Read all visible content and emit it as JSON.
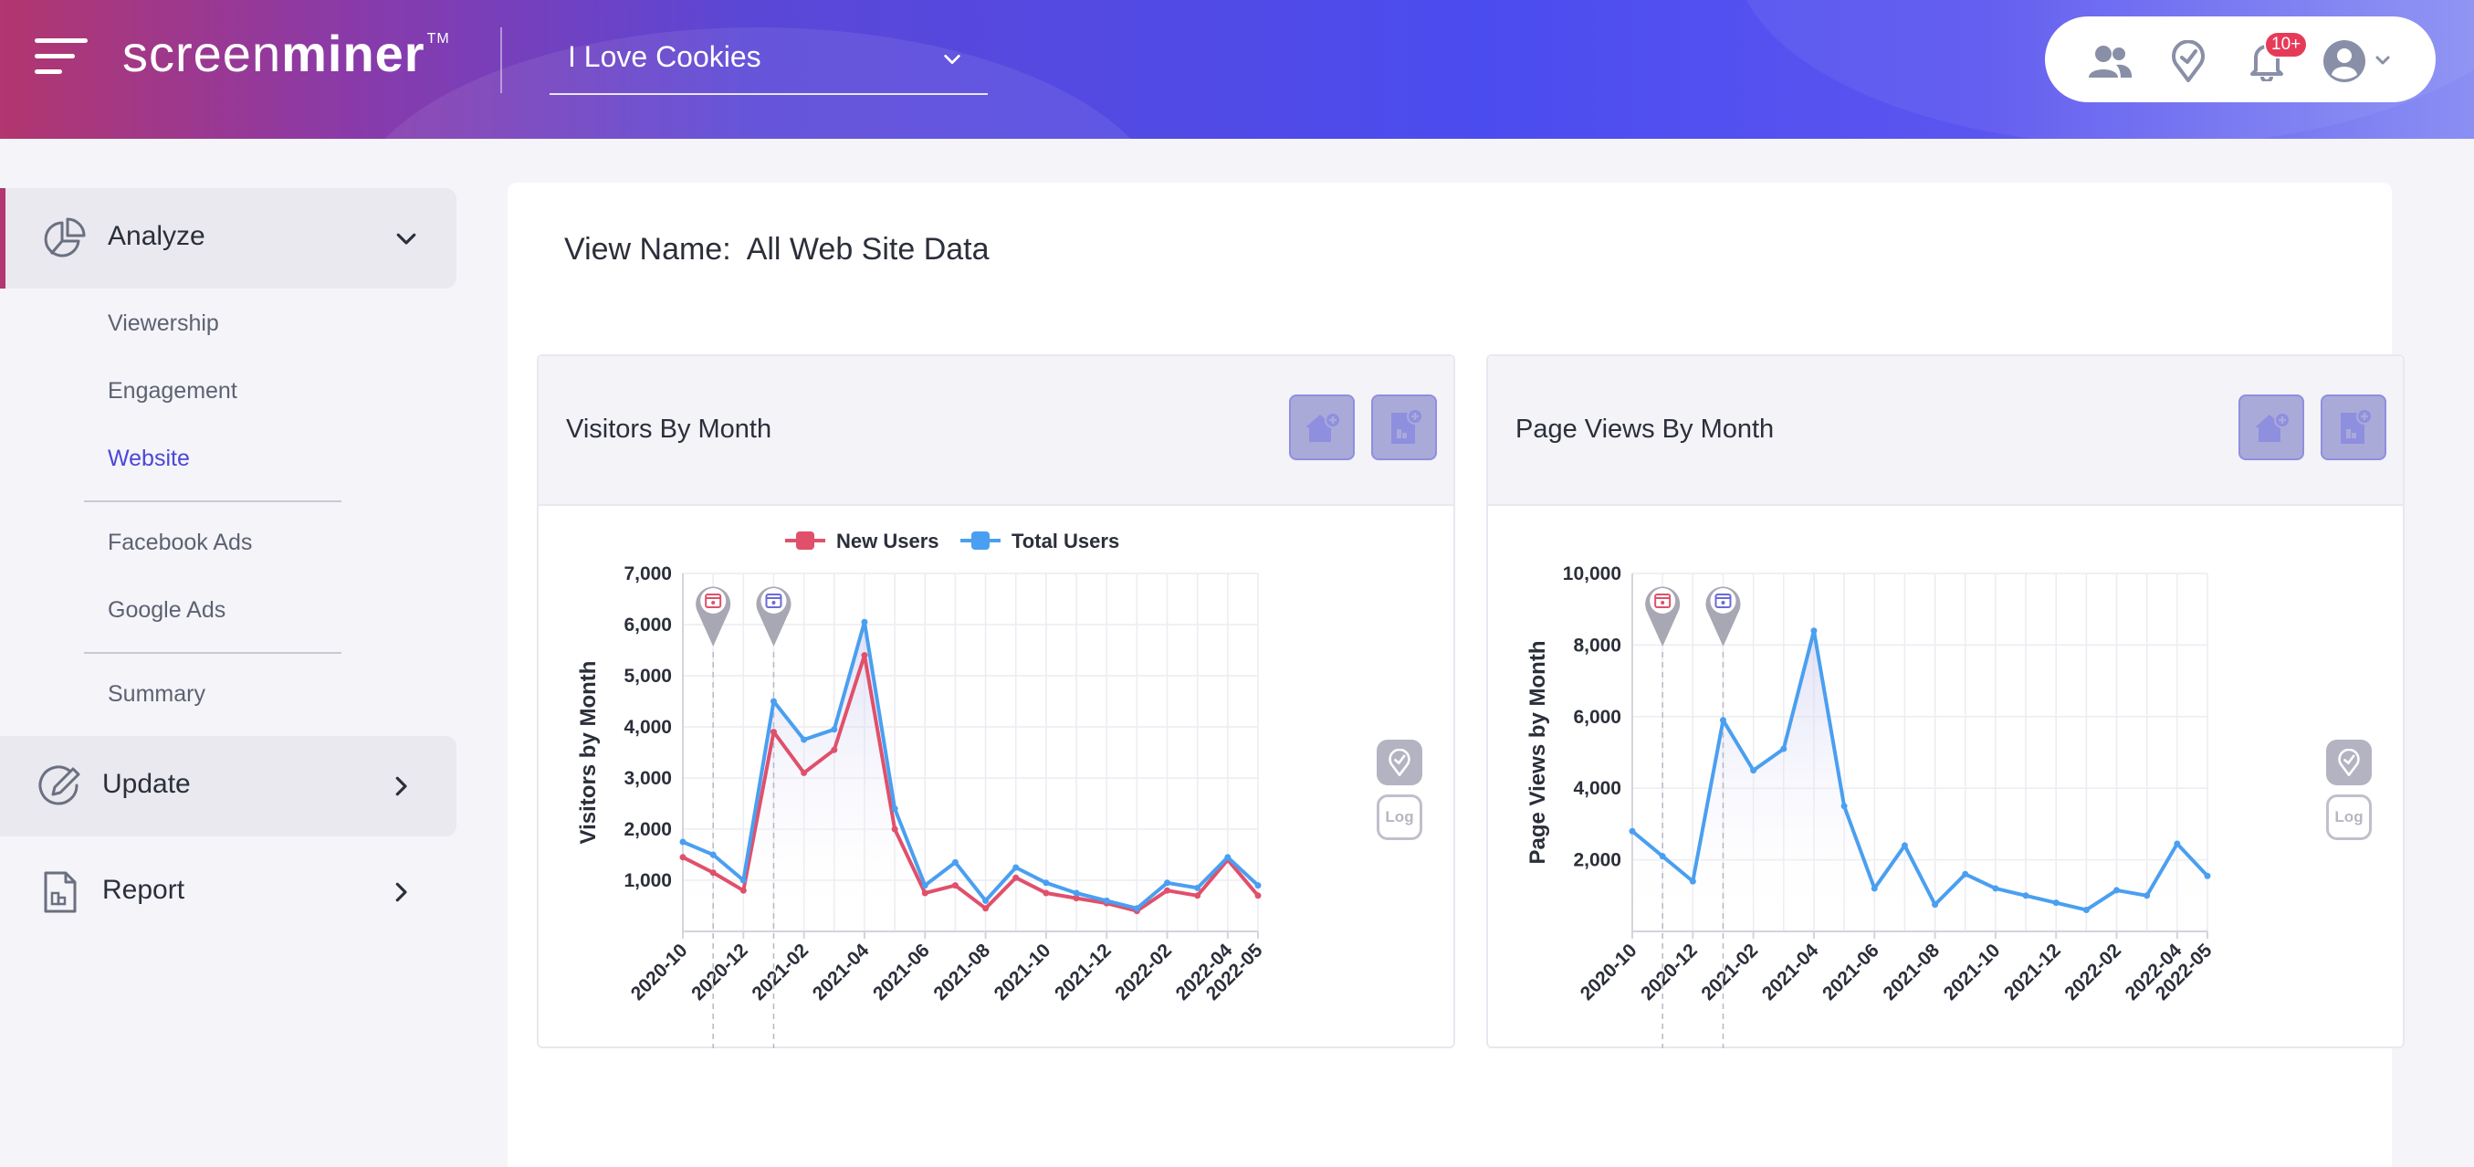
{
  "header": {
    "logo_light": "screen",
    "logo_bold": "miner",
    "logo_tm": "TM",
    "site_selector": "I Love Cookies",
    "notification_count": "10+"
  },
  "sidebar": {
    "groups": [
      {
        "label": "Analyze",
        "icon": "pie-chart-icon",
        "expanded": true
      },
      {
        "label": "Update",
        "icon": "edit-icon",
        "expanded": false
      },
      {
        "label": "Report",
        "icon": "report-icon",
        "expanded": false
      }
    ],
    "items": [
      "Viewership",
      "Engagement",
      "Website",
      "Facebook Ads",
      "Google Ads",
      "Summary"
    ],
    "active_item": "Website"
  },
  "main": {
    "view_label": "View Name:",
    "view_value": "All Web Site Data",
    "log_label": "Log"
  },
  "colors": {
    "accent": "#4b47d8",
    "new_users": "#e0506b",
    "total_users": "#4a9ff0",
    "marker_red": "#e0506b",
    "marker_blue": "#6b6bd8"
  },
  "chart_data": [
    {
      "type": "line",
      "title": "Visitors By Month",
      "ylabel": "Visitors by Month",
      "xlabel": "",
      "legend_position": "top",
      "ylim": [
        0,
        7000
      ],
      "yticks": [
        1000,
        2000,
        3000,
        4000,
        5000,
        6000,
        7000
      ],
      "ytick_labels": [
        "1,000",
        "2,000",
        "3,000",
        "4,000",
        "5,000",
        "6,000",
        "7,000"
      ],
      "x": [
        "2020-10",
        "2020-11",
        "2020-12",
        "2021-01",
        "2021-02",
        "2021-03",
        "2021-04",
        "2021-05",
        "2021-06",
        "2021-07",
        "2021-08",
        "2021-09",
        "2021-10",
        "2021-11",
        "2021-12",
        "2022-01",
        "2022-02",
        "2022-03",
        "2022-04",
        "2022-05"
      ],
      "xtick_labels": [
        "2020-10",
        "2020-12",
        "2021-02",
        "2021-04",
        "2021-06",
        "2021-08",
        "2021-10",
        "2021-12",
        "2022-02",
        "2022-04",
        "2022-05"
      ],
      "markers_at": [
        "2020-11",
        "2021-01"
      ],
      "grid": true,
      "series": [
        {
          "name": "New Users",
          "values": [
            1450,
            1150,
            800,
            3900,
            3100,
            3550,
            5400,
            2000,
            750,
            900,
            450,
            1050,
            750,
            650,
            550,
            400,
            800,
            700,
            1400,
            700
          ]
        },
        {
          "name": "Total Users",
          "values": [
            1750,
            1500,
            1000,
            4500,
            3750,
            3950,
            6050,
            2400,
            900,
            1350,
            600,
            1250,
            950,
            750,
            600,
            450,
            950,
            850,
            1450,
            900
          ]
        }
      ]
    },
    {
      "type": "line",
      "title": "Page Views By Month",
      "ylabel": "Page Views by Month",
      "xlabel": "",
      "ylim": [
        0,
        10000
      ],
      "yticks": [
        2000,
        4000,
        6000,
        8000,
        10000
      ],
      "ytick_labels": [
        "2,000",
        "4,000",
        "6,000",
        "8,000",
        "10,000"
      ],
      "x": [
        "2020-10",
        "2020-11",
        "2020-12",
        "2021-01",
        "2021-02",
        "2021-03",
        "2021-04",
        "2021-05",
        "2021-06",
        "2021-07",
        "2021-08",
        "2021-09",
        "2021-10",
        "2021-11",
        "2021-12",
        "2022-01",
        "2022-02",
        "2022-03",
        "2022-04",
        "2022-05"
      ],
      "xtick_labels": [
        "2020-10",
        "2020-12",
        "2021-02",
        "2021-04",
        "2021-06",
        "2021-08",
        "2021-10",
        "2021-12",
        "2022-02",
        "2022-04",
        "2022-05"
      ],
      "markers_at": [
        "2020-11",
        "2021-01"
      ],
      "grid": true,
      "series": [
        {
          "name": "Page Views",
          "values": [
            2800,
            2100,
            1400,
            5900,
            4500,
            5100,
            8400,
            3500,
            1200,
            2400,
            750,
            1600,
            1200,
            1000,
            800,
            600,
            1150,
            1000,
            2450,
            1550
          ]
        }
      ]
    }
  ]
}
